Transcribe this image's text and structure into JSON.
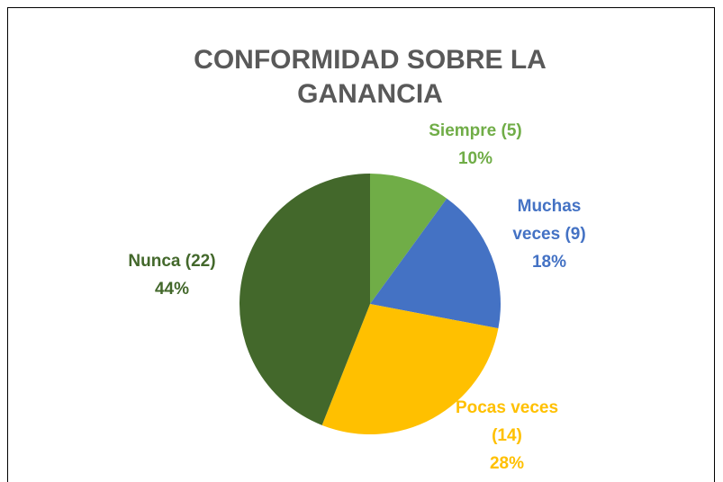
{
  "chart_data": {
    "type": "pie",
    "title": "CONFORMIDAD SOBRE LA GANANCIA",
    "categories": [
      "Siempre (5)",
      "Muchas veces (9)",
      "Pocas veces (14)",
      "Nunca (22)"
    ],
    "values": [
      10,
      18,
      28,
      44
    ],
    "value_labels": [
      "10%",
      "18%",
      "28%",
      "44%"
    ],
    "colors": [
      "#70ad47",
      "#4472c4",
      "#ffc000",
      "#43682b"
    ]
  }
}
